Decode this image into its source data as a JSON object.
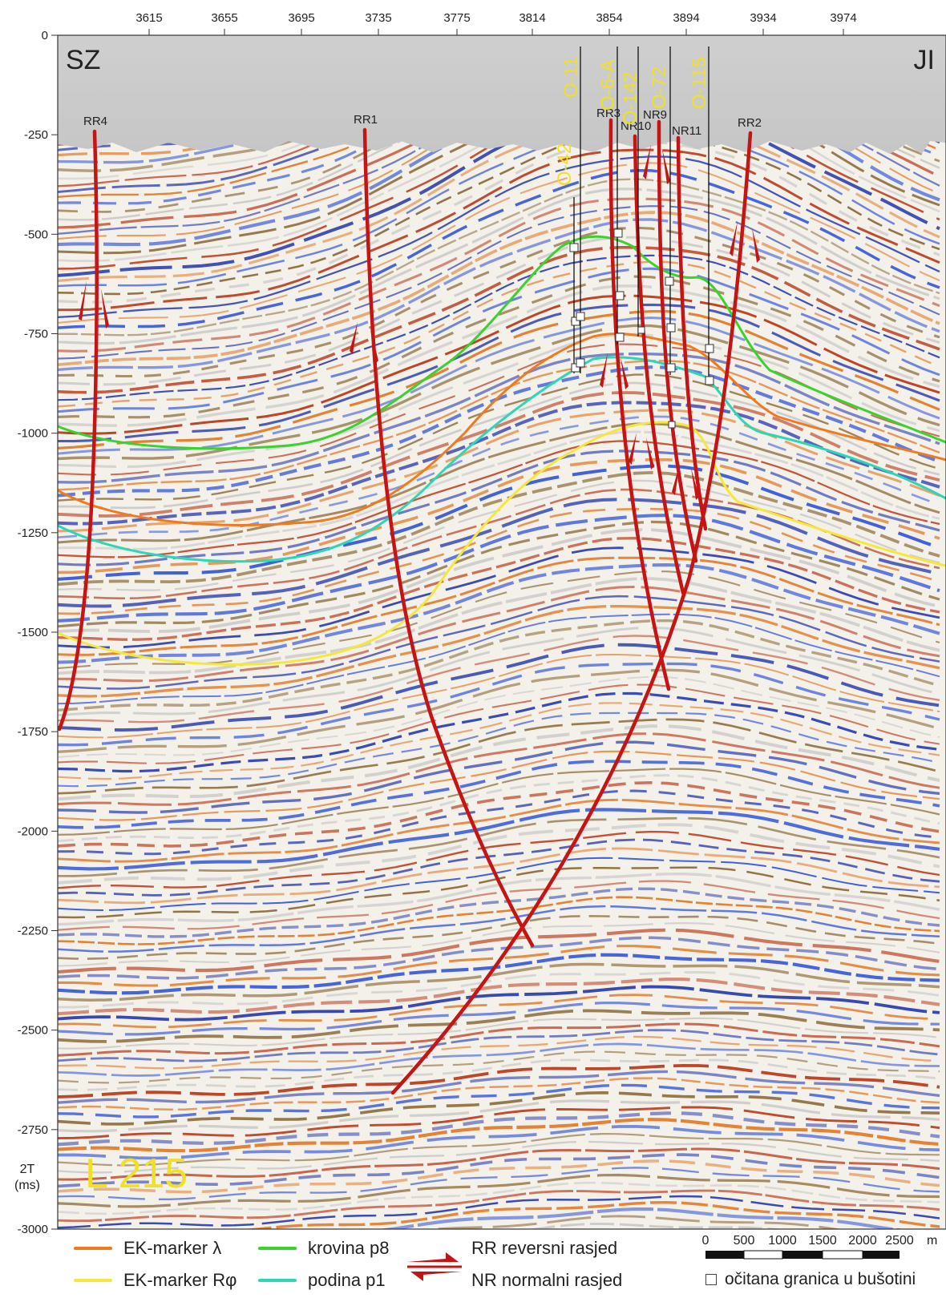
{
  "title": "L 215",
  "direction_left": "SZ",
  "direction_right": "JI",
  "top_axis": {
    "ticks": [
      "3615",
      "3655",
      "3695",
      "3735",
      "3775",
      "3814",
      "3854",
      "3894",
      "3934",
      "3974"
    ]
  },
  "left_axis": {
    "label_line1": "2T",
    "label_line2": "(ms)",
    "ticks": [
      "0",
      "-250",
      "-500",
      "-750",
      "-1000",
      "-1250",
      "-1500",
      "-1750",
      "-2000",
      "-2250",
      "-2500",
      "-2750",
      "-3000"
    ]
  },
  "faults": {
    "reverse": [
      "RR4",
      "RR1",
      "RR3",
      "RR2"
    ],
    "normal": [
      "NR10",
      "NR9",
      "NR11"
    ]
  },
  "wells": [
    "O-42",
    "O-11",
    "O-6-A",
    "O-142",
    "O-72",
    "O-115"
  ],
  "legend": {
    "marker_lambda": "EK-marker λ",
    "marker_rphi": "EK-marker Rφ",
    "krovina": "krovina p8",
    "podina": "podina p1",
    "reverse_fault": "RR reversni rasjed",
    "normal_fault": "NR normalni rasjed",
    "scale_labels": [
      "0",
      "500",
      "1000",
      "1500",
      "2000",
      "2500"
    ],
    "scale_unit": "m",
    "well_note": "očitana granica u bušotini"
  },
  "colors": {
    "marker_lambda": "#f07a20",
    "marker_rphi": "#f5e83a",
    "krovina": "#3bd12f",
    "podina": "#2fd6b5",
    "fault": "#c41414",
    "well_label": "#f0e02a"
  }
}
